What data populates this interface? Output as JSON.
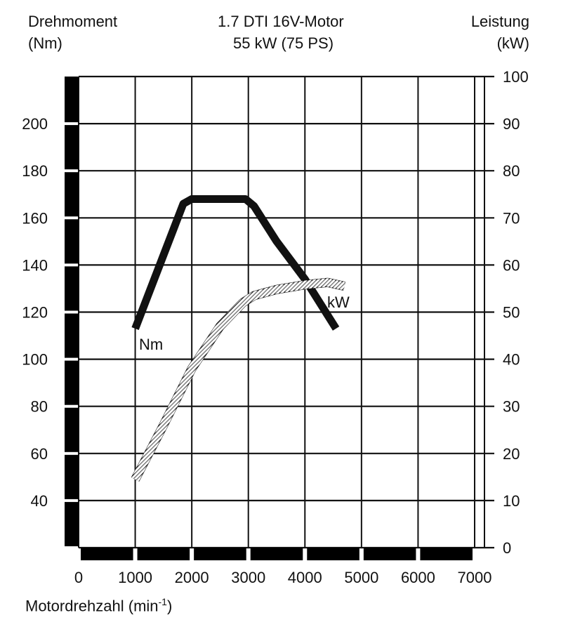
{
  "chart_data": {
    "type": "line",
    "title": "1.7 DTI 16V-Motor",
    "subtitle": "55 kW (75 PS)",
    "left_axis": {
      "label": "Drehmoment",
      "unit": "(Nm)",
      "range": [
        20,
        220
      ],
      "ticks": [
        40,
        60,
        80,
        100,
        120,
        140,
        160,
        180,
        200
      ]
    },
    "right_axis": {
      "label": "Leistung",
      "unit": "(kW)",
      "range": [
        0,
        100
      ],
      "ticks": [
        0,
        10,
        20,
        30,
        40,
        50,
        60,
        70,
        80,
        90,
        100
      ]
    },
    "x_axis": {
      "label": "Motordrehzahl (min",
      "label_sup": "-1",
      "label_close": ")",
      "range": [
        0,
        7000
      ],
      "ticks": [
        0,
        1000,
        2000,
        3000,
        4000,
        5000,
        6000,
        7000
      ]
    },
    "grid": true,
    "series": [
      {
        "name": "Nm",
        "axis": "left",
        "style": "solid-thick",
        "color": "#111111",
        "x": [
          1000,
          1850,
          2000,
          2950,
          3100,
          3500,
          4000,
          4550
        ],
        "y": [
          113,
          166,
          168,
          168,
          165,
          150,
          134,
          113
        ]
      },
      {
        "name": "kW",
        "axis": "right",
        "style": "hatched",
        "color": "#111111",
        "x": [
          1000,
          1500,
          2000,
          2500,
          2900,
          3100,
          3500,
          4000,
          4400,
          4700
        ],
        "y": [
          14.5,
          26,
          38,
          47,
          52,
          53.5,
          54.8,
          55.8,
          56.3,
          55.5
        ]
      }
    ]
  }
}
